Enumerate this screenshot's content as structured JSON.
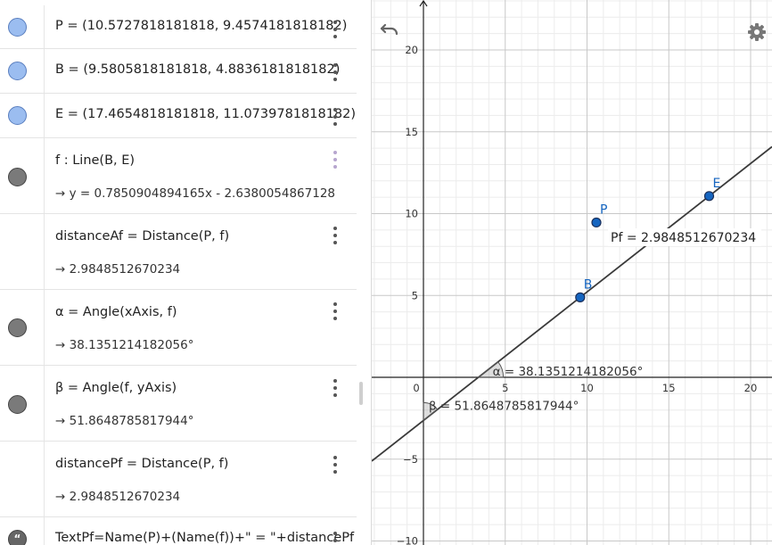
{
  "algebra": {
    "rows": [
      {
        "text": "P = (10.5727818181818, 9.4574181818182)"
      },
      {
        "text": "B = (9.5805818181818, 4.8836181818182)"
      },
      {
        "text": "E = (17.4654818181818, 11.0739781818182)"
      },
      {
        "text": "f : Line(B, E)",
        "output": "→ y = 0.7850904894165x - 2.6380054867128"
      },
      {
        "text": "distanceAf  =  Distance(P, f)",
        "output": "→ 2.9848512670234"
      },
      {
        "text": "α  =  Angle(xAxis, f)",
        "output": "→ 38.1351214182056°"
      },
      {
        "text": "β  =  Angle(f, yAxis)",
        "output": "→ 51.8648785817944°"
      },
      {
        "text": "distancePf  =  Distance(P, f)",
        "output": "→ 2.9848512670234"
      },
      {
        "text": "TextPf=Name(P)+(Name(f))+\" = \"+distancePf"
      }
    ],
    "quote_icon": "quote-icon"
  },
  "graphics": {
    "points": [
      {
        "label": "P",
        "x": 10.5727818181818,
        "y": 9.4574181818182
      },
      {
        "label": "B",
        "x": 9.5805818181818,
        "y": 4.8836181818182
      },
      {
        "label": "E",
        "x": 17.4654818181818,
        "y": 11.0739781818182
      }
    ],
    "line": {
      "slope": 0.7850904894165,
      "intercept": -2.6380054867128
    },
    "x_ticks": [
      0,
      5,
      10,
      15,
      20
    ],
    "y_ticks": [
      20,
      15,
      10,
      5,
      -5,
      -10
    ],
    "pf_label": "Pf = 2.9848512670234",
    "alpha_label": "α = 38.1351214182056°",
    "beta_label": "β = 51.8648785817944°",
    "colors": {
      "point": "#1565c0",
      "point_label": "#1565c0",
      "line": "#3a3a3a",
      "grid_minor": "#ececec",
      "grid_major": "#c8c8c8"
    },
    "icons": [
      "undo-icon",
      "gear-icon"
    ]
  }
}
